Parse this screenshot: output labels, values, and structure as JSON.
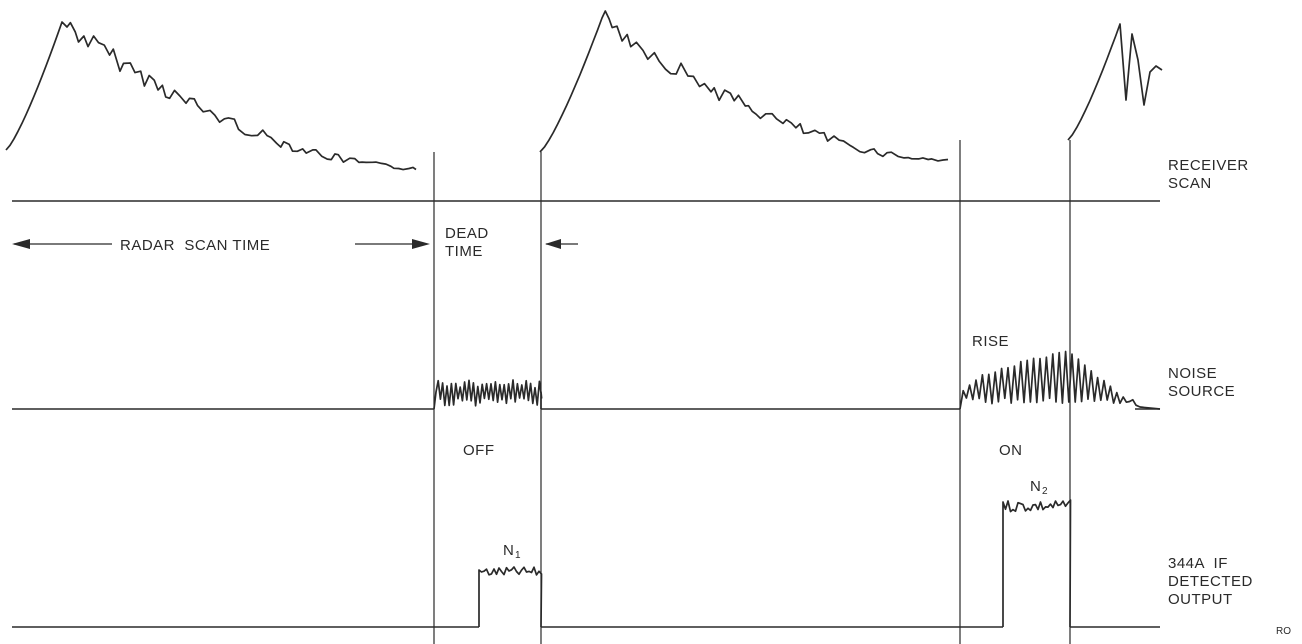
{
  "labels": {
    "receiver_scan": [
      "RECEIVER",
      "SCAN"
    ],
    "radar_scan_time": "RADAR  SCAN TIME",
    "dead_time": [
      "DEAD",
      "TIME"
    ],
    "rise": "RISE",
    "noise_source": [
      "NOISE",
      "SOURCE"
    ],
    "off": "OFF",
    "on": "ON",
    "n1": "N",
    "n1_sub": "1",
    "n2": "N",
    "n2_sub": "2",
    "detected_output": [
      "344A  IF",
      "DETECTED",
      "OUTPUT"
    ],
    "corner_code": "RO"
  }
}
